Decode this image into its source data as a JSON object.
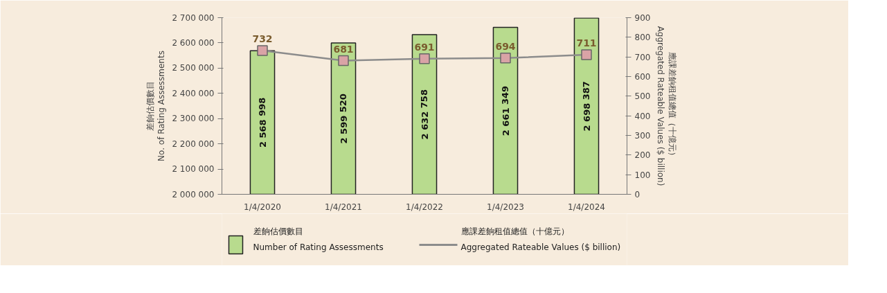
{
  "chart_data": {
    "type": "bar",
    "categories": [
      "1/4/2020",
      "1/4/2021",
      "1/4/2022",
      "1/4/2023",
      "1/4/2024"
    ],
    "ylabel": "差餉估價數目\nNo. of Rating Assessments",
    "y2label": "應課差餉租值總值（十億元）\nAggregated Rateable Values ($ billion)",
    "series": [
      {
        "name": "差餉估價數目\nNumber of Rating Assessments",
        "type": "bar",
        "color": "#b8db8e",
        "values": [
          2568998,
          2599520,
          2632758,
          2661349,
          2698387
        ],
        "value_labels": [
          "2 568 998",
          "2 599 520",
          "2 632 758",
          "2 661 349",
          "2 698 387"
        ]
      },
      {
        "name": "應課差餉租值總值（十億元）\nAggregated Rateable Values ($ billion)",
        "type": "line",
        "axis": "y2",
        "color": "#8c8c8c",
        "marker": "square",
        "values": [
          732,
          681,
          691,
          694,
          711
        ],
        "value_labels": [
          "732",
          "681",
          "691",
          "694",
          "711"
        ]
      }
    ],
    "ylim": [
      2000000,
      2700000
    ],
    "yticks": [
      {
        "value": 2000000,
        "label": "2 000 000"
      },
      {
        "value": 2100000,
        "label": "2 100 000"
      },
      {
        "value": 2200000,
        "label": "2 200 000"
      },
      {
        "value": 2300000,
        "label": "2 300 000"
      },
      {
        "value": 2400000,
        "label": "2 400 000"
      },
      {
        "value": 2500000,
        "label": "2 500 000"
      },
      {
        "value": 2600000,
        "label": "2 600 000"
      },
      {
        "value": 2700000,
        "label": "2 700 000"
      }
    ],
    "y2lim": [
      0,
      900
    ],
    "y2ticks": [
      0,
      100,
      200,
      300,
      400,
      500,
      600,
      700,
      800,
      900
    ],
    "grid": false,
    "legend": "bottom"
  }
}
